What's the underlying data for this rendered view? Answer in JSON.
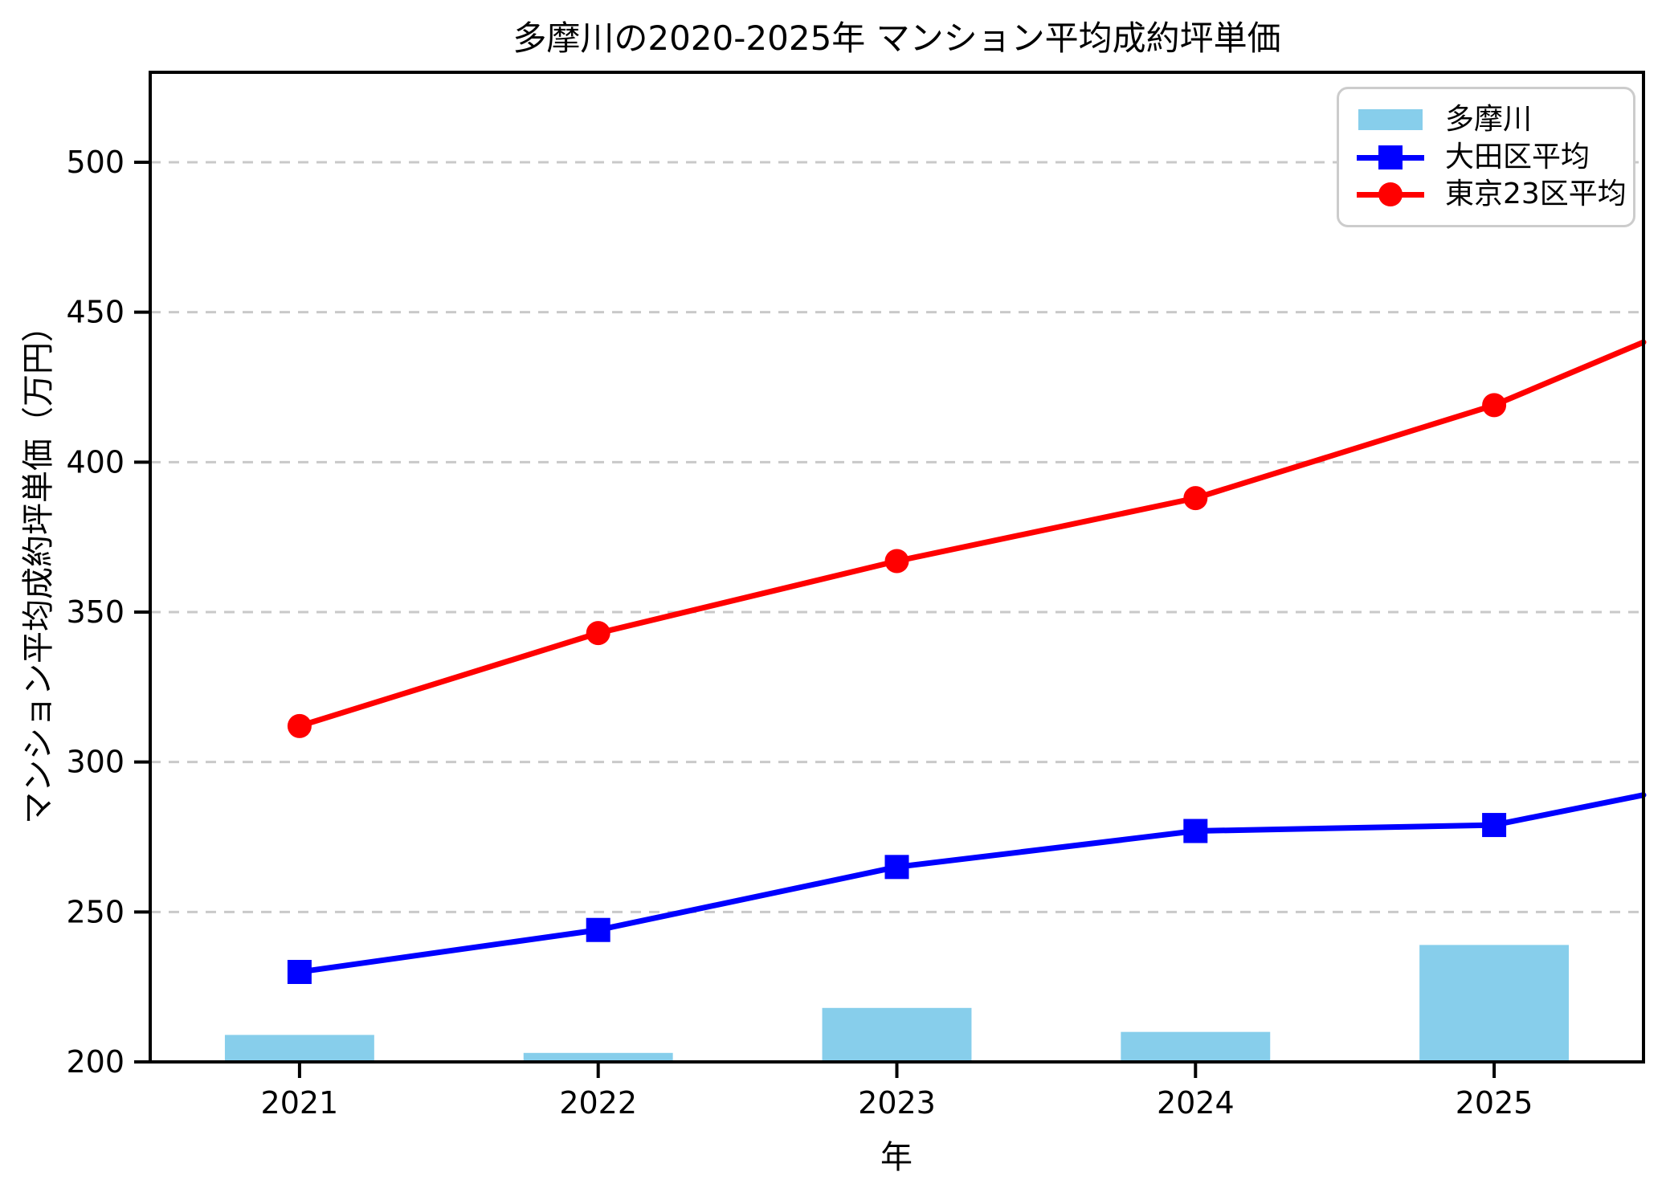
{
  "title": "多摩川の2020-2025年 マンション平均成約坪単価",
  "axes": {
    "xlabel": "年",
    "ylabel": "マンション平均成約坪単価（万円）",
    "xtick_labels": [
      "2021",
      "2022",
      "2023",
      "2024",
      "2025"
    ],
    "ytick_labels": [
      "200",
      "250",
      "300",
      "350",
      "400",
      "450",
      "500"
    ]
  },
  "legend": {
    "position": "top-right",
    "items": [
      {
        "label": "多摩川",
        "type": "bar",
        "color": "#87ceeb"
      },
      {
        "label": "大田区平均",
        "type": "line-square",
        "color": "#0000ff"
      },
      {
        "label": "東京23区平均",
        "type": "line-circle",
        "color": "#ff0000"
      }
    ]
  },
  "chart_data": {
    "type": "combo",
    "title": "多摩川の2020-2025年 マンション平均成約坪単価",
    "xlabel": "年",
    "ylabel": "マンション平均成約坪単価（万円）",
    "x": [
      2021,
      2022,
      2023,
      2024,
      2025
    ],
    "xlim": [
      2020.5,
      2025.5
    ],
    "ylim": [
      200,
      530
    ],
    "yticks": [
      200,
      250,
      300,
      350,
      400,
      450,
      500
    ],
    "grid": {
      "axis": "y",
      "style": "dashed",
      "color": "#c9c9c9"
    },
    "bar_series": {
      "name": "多摩川",
      "type": "bar",
      "color": "#87ceeb",
      "baseline": 200,
      "bar_width": 0.5,
      "values": [
        209,
        203,
        218,
        210,
        239
      ]
    },
    "line_series": [
      {
        "name": "大田区平均",
        "type": "line",
        "color": "#0000ff",
        "marker": "square",
        "values": [
          230,
          244,
          265,
          277,
          279
        ],
        "value_at_right_edge": 289
      },
      {
        "name": "東京23区平均",
        "type": "line",
        "color": "#ff0000",
        "marker": "circle",
        "values": [
          312,
          343,
          367,
          388,
          419
        ],
        "value_at_right_edge": 440
      }
    ]
  },
  "colors": {
    "bar": "#87ceeb",
    "line_ota": "#0000ff",
    "line_tokyo23": "#ff0000",
    "grid": "#c9c9c9",
    "spine": "#000000",
    "legend_border": "#cccccc"
  }
}
